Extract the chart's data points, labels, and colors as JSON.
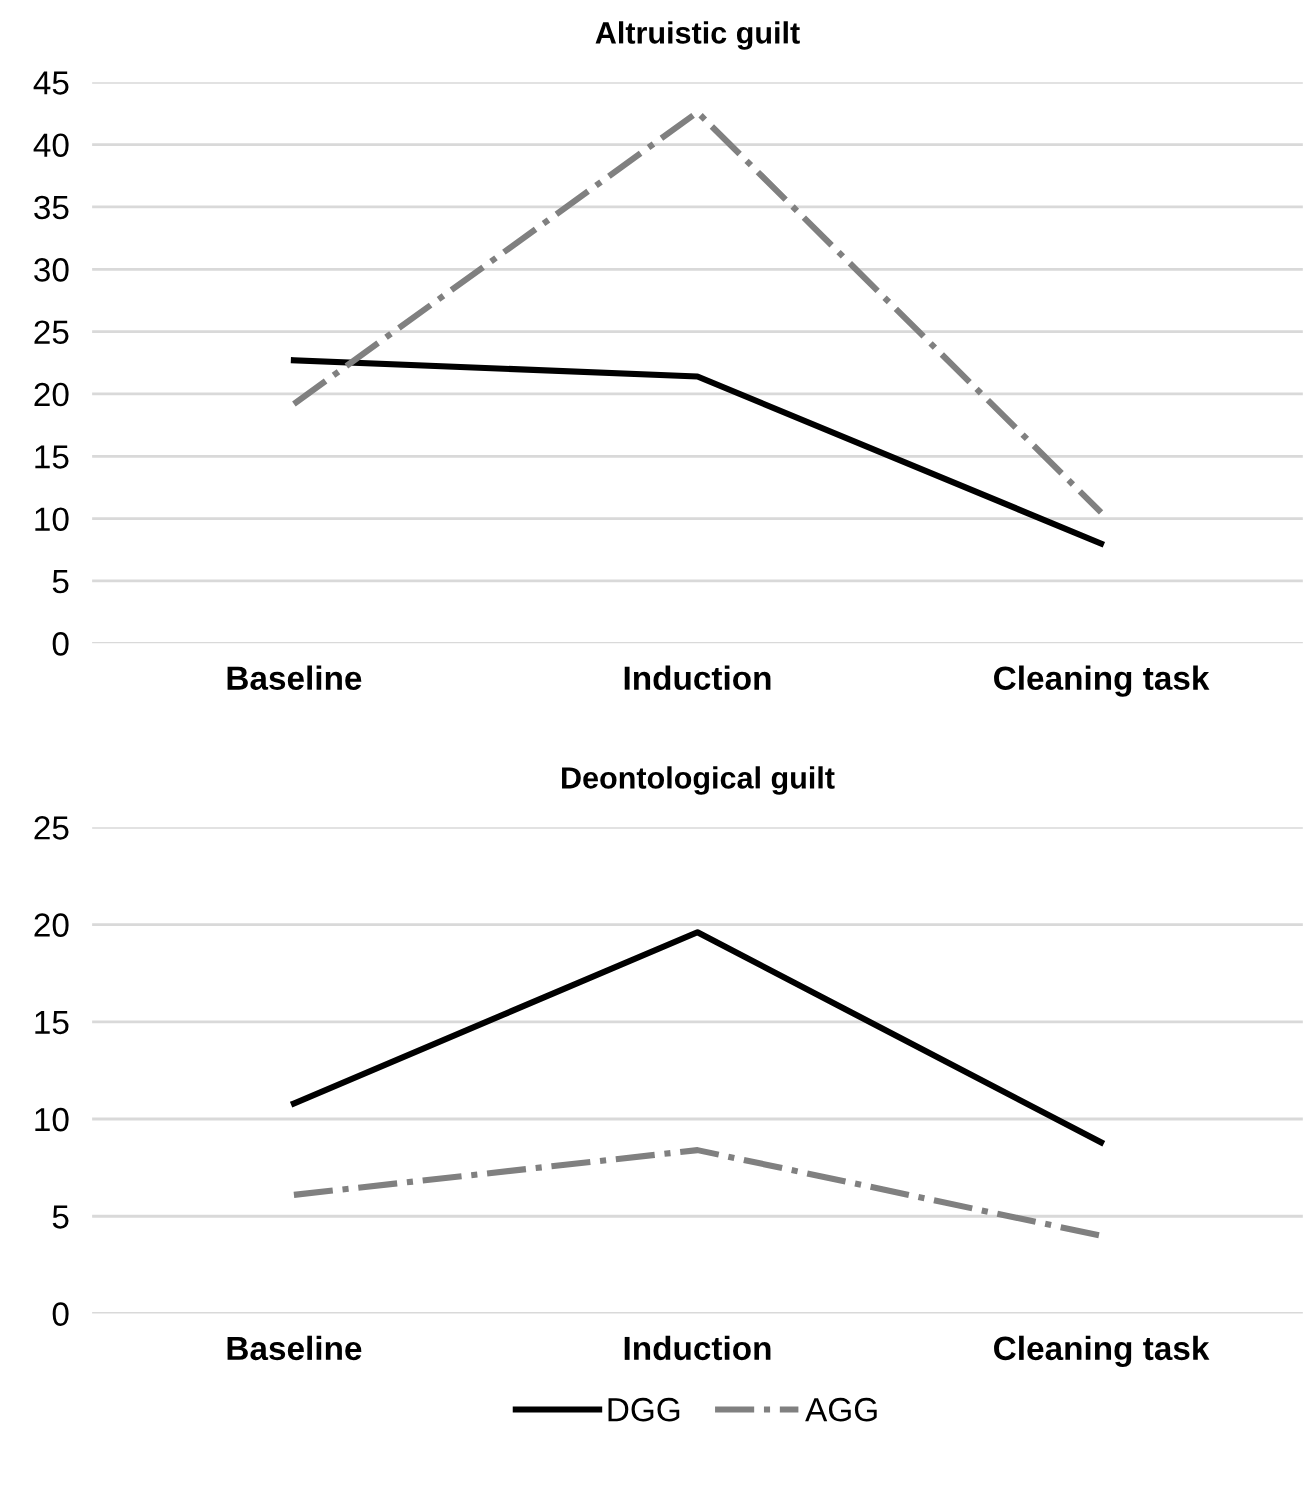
{
  "chart_data": [
    {
      "type": "line",
      "title": "Altruistic guilt",
      "categories": [
        "Baseline",
        "Induction",
        "Cleaning task"
      ],
      "ylim": [
        0,
        45
      ],
      "yticks": [
        0,
        5,
        10,
        15,
        20,
        25,
        30,
        35,
        40,
        45
      ],
      "grid": "y",
      "series": [
        {
          "color": "#000000",
          "line_style": "solid",
          "values": [
            22.7,
            21.4,
            8.0
          ]
        },
        {
          "color": "#808080",
          "line_style": "dashdot",
          "values": [
            19.2,
            42.6,
            10.5
          ]
        }
      ]
    },
    {
      "type": "line",
      "title": "Deontological guilt",
      "categories": [
        "Baseline",
        "Induction",
        "Cleaning task"
      ],
      "ylim": [
        0,
        25
      ],
      "yticks": [
        0,
        5,
        10,
        15,
        20,
        25
      ],
      "grid": "y",
      "legend": "bottom",
      "series": [
        {
          "name": "DGG",
          "color": "#000000",
          "line_style": "solid",
          "values": [
            10.8,
            19.6,
            8.8
          ]
        },
        {
          "name": "AGG",
          "color": "#808080",
          "line_style": "dashdot",
          "values": [
            6.1,
            8.4,
            4.0
          ]
        }
      ]
    }
  ]
}
